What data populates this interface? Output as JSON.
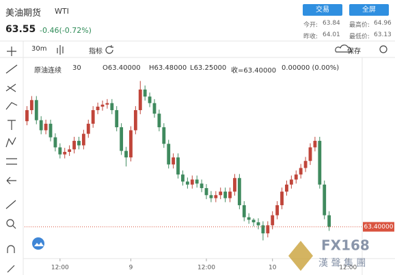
{
  "header": {
    "name": "美油期货",
    "symbol": "WTI",
    "price": "63.55",
    "change": "-0.46(-0.72%)",
    "buttons": [
      "交易",
      "全屏"
    ],
    "stats": [
      {
        "label": "今开:",
        "value": "63.84"
      },
      {
        "label": "最高价:",
        "value": "64.96"
      },
      {
        "label": "昨收:",
        "value": "64.01"
      },
      {
        "label": "最低价:",
        "value": "63.13"
      }
    ]
  },
  "toolbar": {
    "interval": "30m",
    "indicators": "指标",
    "save": "保存"
  },
  "legend": {
    "series": "原油连续",
    "interval": "30",
    "open": "O63.40000",
    "high": "H63.48000",
    "low": "L63.25000",
    "close": "收=63.40000",
    "change": "0.00000 (0.00%)"
  },
  "watermark": {
    "brand": "FX168",
    "group": "漢 聲 集 團"
  },
  "chart_data": {
    "type": "candlestick",
    "open": [
      65.5,
      65.72,
      65.92,
      65.52,
      65.32,
      65.45,
      65.18,
      64.98,
      64.84,
      64.89,
      64.94,
      65.11,
      65.02,
      65.25,
      65.45,
      65.72,
      65.79,
      65.83,
      65.86,
      65.72,
      65.38,
      64.91,
      64.78,
      65.32,
      65.72,
      66.13,
      65.99,
      65.86,
      65.65,
      65.38,
      65.05,
      64.64,
      64.78,
      64.44,
      64.3,
      64.24,
      64.34,
      64.26,
      64.17,
      64.03,
      63.97,
      64.03,
      64.1,
      63.97,
      64.1,
      64.37,
      63.83,
      63.59,
      63.54,
      63.49,
      63.43,
      63.27,
      63.43,
      63.63,
      63.83,
      64.1,
      64.24,
      64.34,
      64.44,
      64.57,
      64.71,
      64.98,
      65.11,
      64.24,
      63.63
    ],
    "high": [
      65.8,
      66.0,
      66.0,
      65.6,
      65.53,
      65.53,
      65.26,
      65.06,
      64.97,
      65.02,
      65.19,
      65.19,
      65.33,
      65.53,
      65.8,
      65.87,
      65.91,
      65.94,
      65.94,
      65.8,
      65.46,
      64.99,
      65.4,
      65.8,
      66.3,
      66.21,
      66.07,
      65.94,
      65.73,
      65.46,
      65.13,
      64.86,
      64.86,
      64.52,
      64.38,
      64.42,
      64.42,
      64.34,
      64.25,
      64.11,
      64.11,
      64.18,
      64.18,
      64.18,
      64.45,
      64.45,
      63.91,
      63.67,
      63.57,
      63.57,
      63.51,
      63.51,
      63.71,
      63.91,
      64.18,
      64.32,
      64.42,
      64.52,
      64.65,
      64.79,
      65.06,
      65.19,
      65.19,
      64.32,
      63.71
    ],
    "low": [
      65.42,
      65.64,
      65.44,
      65.24,
      65.24,
      65.1,
      64.9,
      64.76,
      64.76,
      64.81,
      64.86,
      64.94,
      64.94,
      65.17,
      65.37,
      65.64,
      65.71,
      65.75,
      65.64,
      65.3,
      64.83,
      64.6,
      64.7,
      65.24,
      65.64,
      65.91,
      65.78,
      65.57,
      65.3,
      64.97,
      64.56,
      64.56,
      64.36,
      64.22,
      64.16,
      64.16,
      64.18,
      64.09,
      63.95,
      63.89,
      63.89,
      63.95,
      63.89,
      63.89,
      64.02,
      63.75,
      63.51,
      63.46,
      63.41,
      63.35,
      63.13,
      63.19,
      63.35,
      63.55,
      63.75,
      64.02,
      64.16,
      64.26,
      64.36,
      64.49,
      64.63,
      64.9,
      64.16,
      63.55,
      63.32
    ],
    "close": [
      65.72,
      65.92,
      65.52,
      65.32,
      65.45,
      65.18,
      64.98,
      64.84,
      64.89,
      64.94,
      65.11,
      65.02,
      65.25,
      65.45,
      65.72,
      65.79,
      65.83,
      65.86,
      65.72,
      65.38,
      64.91,
      64.78,
      65.32,
      65.72,
      66.13,
      65.99,
      65.86,
      65.65,
      65.38,
      65.05,
      64.64,
      64.78,
      64.44,
      64.3,
      64.24,
      64.34,
      64.26,
      64.17,
      64.03,
      63.97,
      64.03,
      64.1,
      63.97,
      64.1,
      64.37,
      63.83,
      63.59,
      63.54,
      63.49,
      63.43,
      63.27,
      63.43,
      63.63,
      63.83,
      64.1,
      64.24,
      64.34,
      64.44,
      64.57,
      64.71,
      64.98,
      65.11,
      64.24,
      63.63,
      63.4
    ],
    "up_color": "#c0453a",
    "down_color": "#3f8a5e",
    "xlim": [
      -0.5,
      71
    ],
    "xticks": [
      {
        "value": 7,
        "label": "12:00"
      },
      {
        "value": 22,
        "label": "9"
      },
      {
        "value": 38,
        "label": "12:00"
      },
      {
        "value": 52,
        "label": "10"
      },
      {
        "value": 68,
        "label": "12:00"
      }
    ],
    "ylim": [
      62.85,
      66.55
    ],
    "price_line": {
      "value": 63.4,
      "label": "63.40000",
      "color": "#d9533f"
    }
  }
}
